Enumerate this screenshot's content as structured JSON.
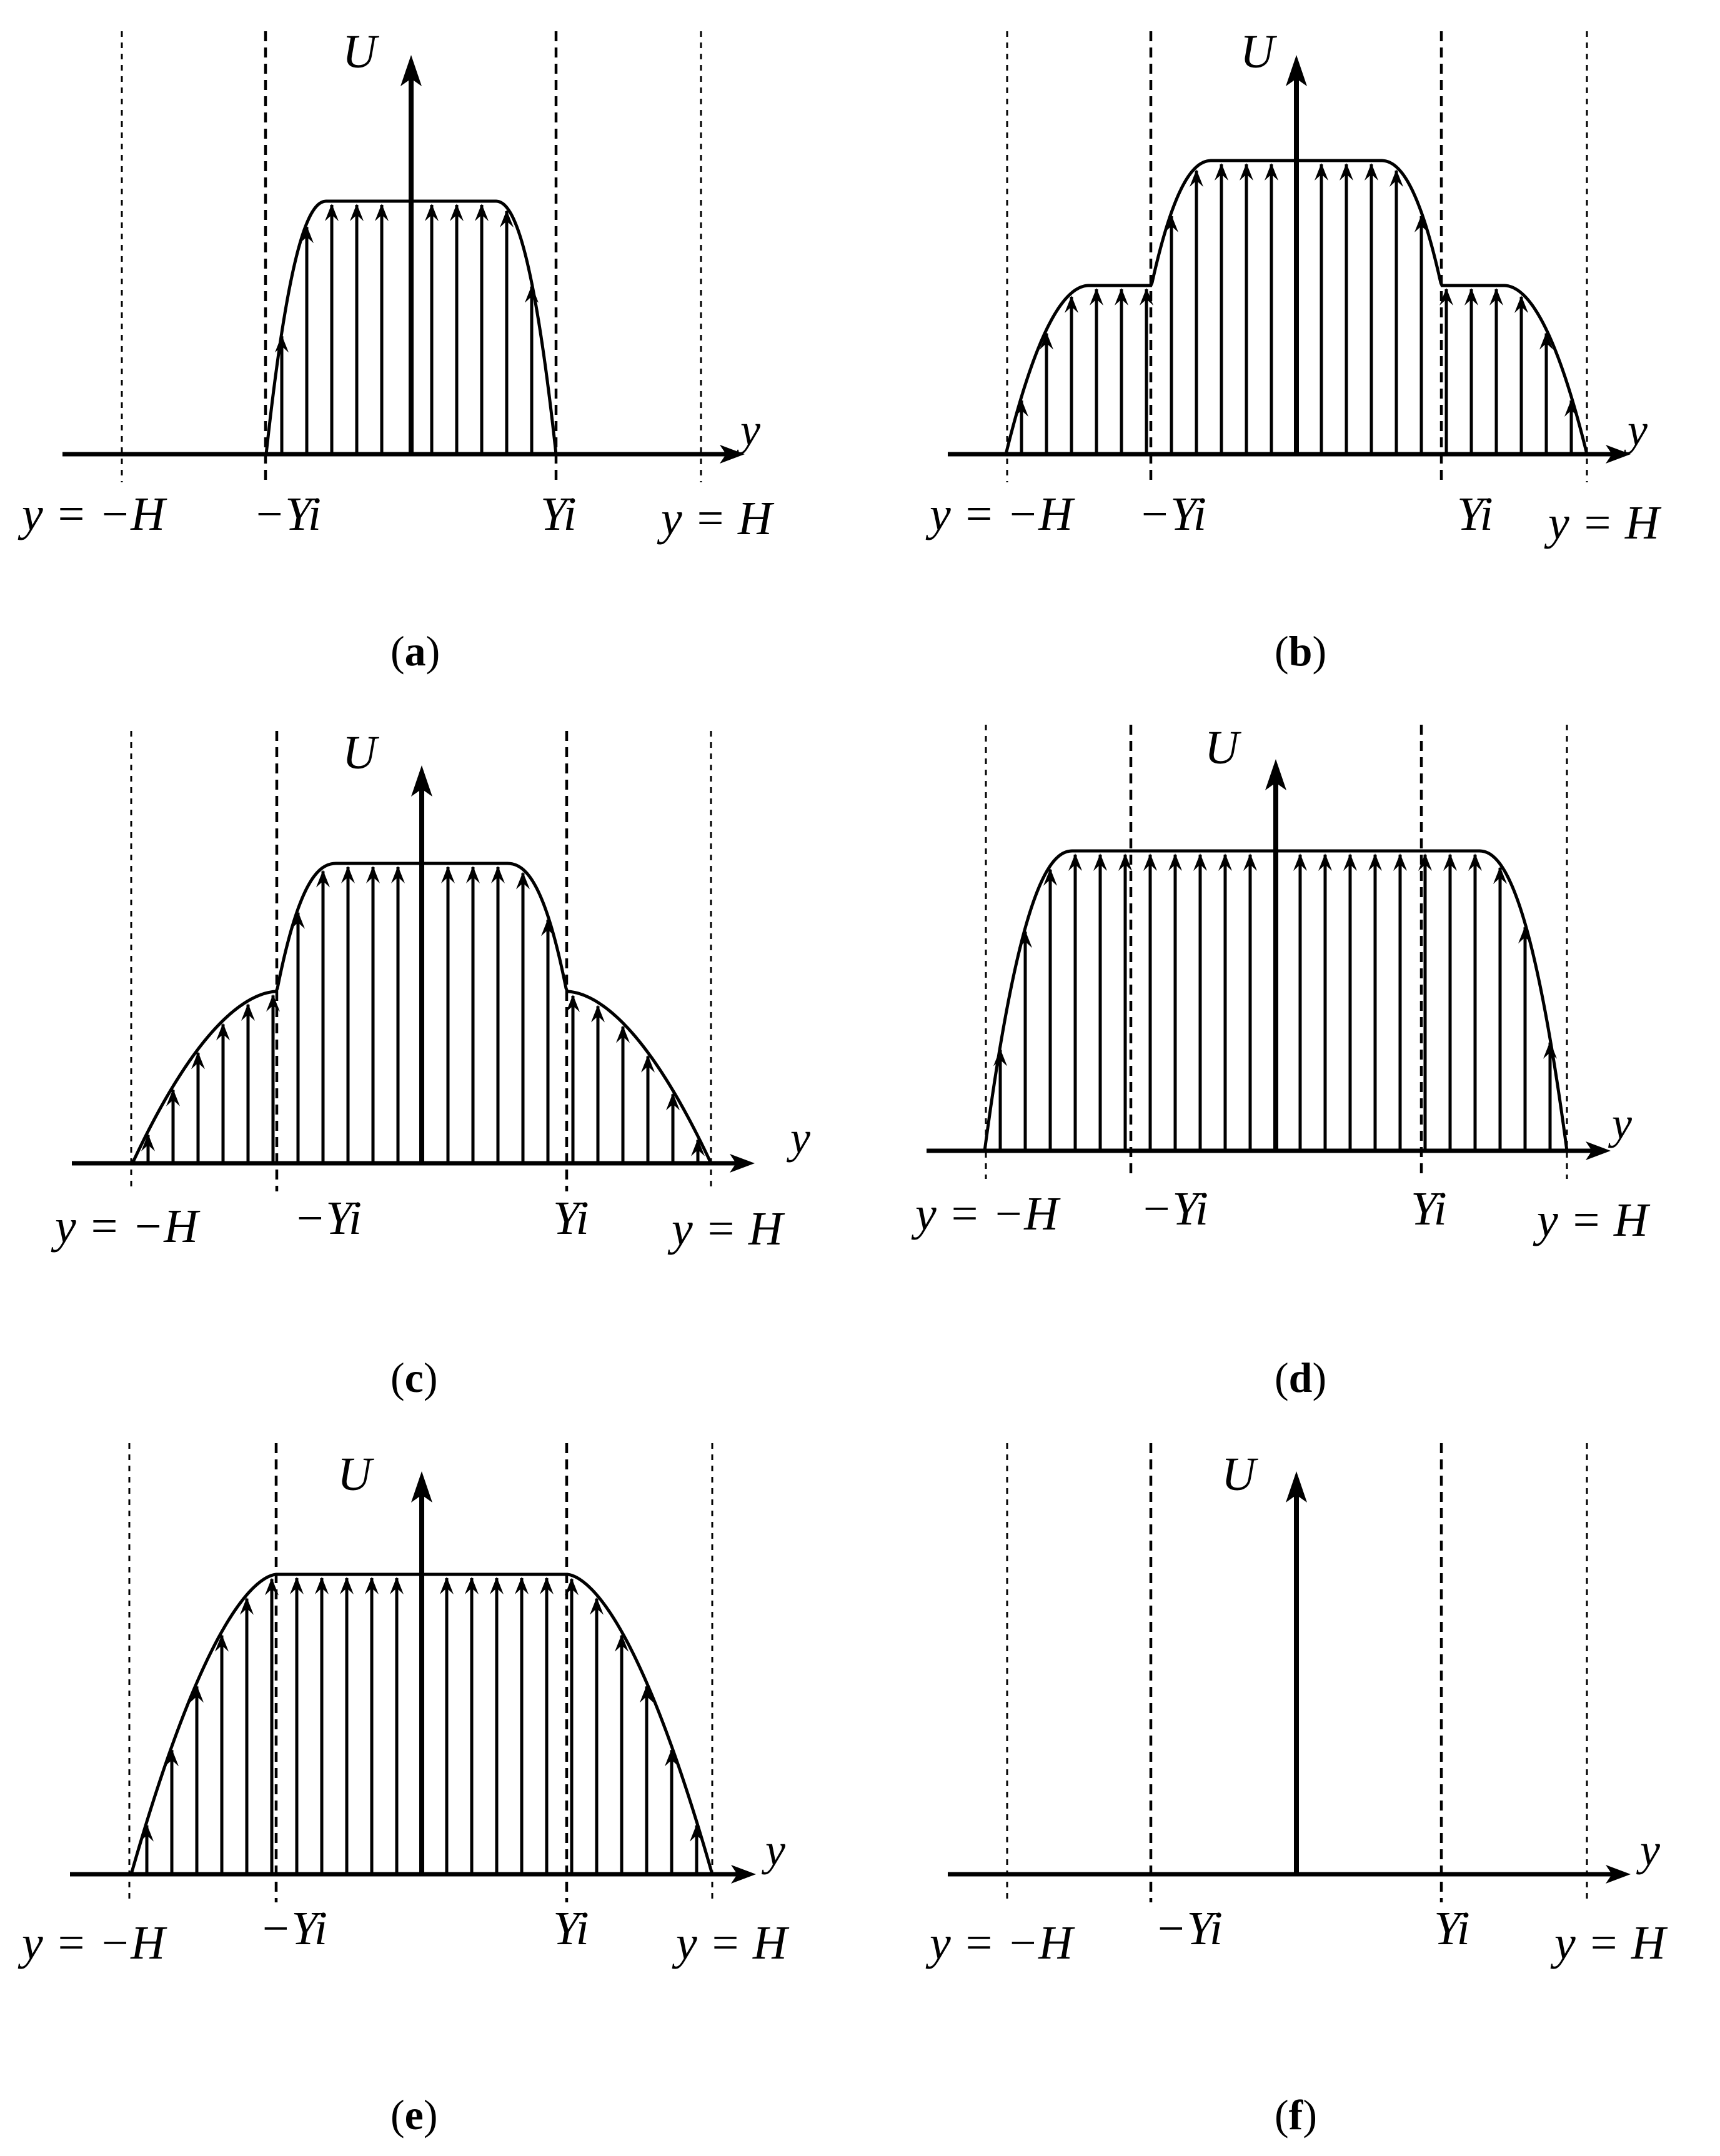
{
  "panels": [
    {
      "id": "a",
      "caption": "a",
      "labels": {
        "u": "U",
        "y": "y",
        "neg_h": "y = −H",
        "neg_yi": "−Yi",
        "pos_yi": "Yi",
        "pos_h": "y = H"
      }
    },
    {
      "id": "b",
      "caption": "b",
      "labels": {
        "u": "U",
        "y": "y",
        "neg_h": "y = −H",
        "neg_yi": "−Yi",
        "pos_yi": "Yi",
        "pos_h": "y = H"
      }
    },
    {
      "id": "c",
      "caption": "c",
      "labels": {
        "u": "U",
        "y": "y",
        "neg_h": "y = −H",
        "neg_yi": "−Yi",
        "pos_yi": "Yi",
        "pos_h": "y = H"
      }
    },
    {
      "id": "d",
      "caption": "d",
      "labels": {
        "u": "U",
        "y": "y",
        "neg_h": "y = −H",
        "neg_yi": "−Yi",
        "pos_yi": "Yi",
        "pos_h": "y = H"
      }
    },
    {
      "id": "e",
      "caption": "e",
      "labels": {
        "u": "U",
        "y": "y",
        "neg_h": "y = −H",
        "neg_yi": "−Yi",
        "pos_yi": "Yi",
        "pos_h": "y = H"
      }
    },
    {
      "id": "f",
      "caption": "f",
      "labels": {
        "u": "U",
        "y": "y",
        "neg_h": "y = −H",
        "neg_yi": "−Yi",
        "pos_yi": "Yi",
        "pos_h": "y = H"
      }
    }
  ],
  "caption_open": "(",
  "caption_close": ")"
}
